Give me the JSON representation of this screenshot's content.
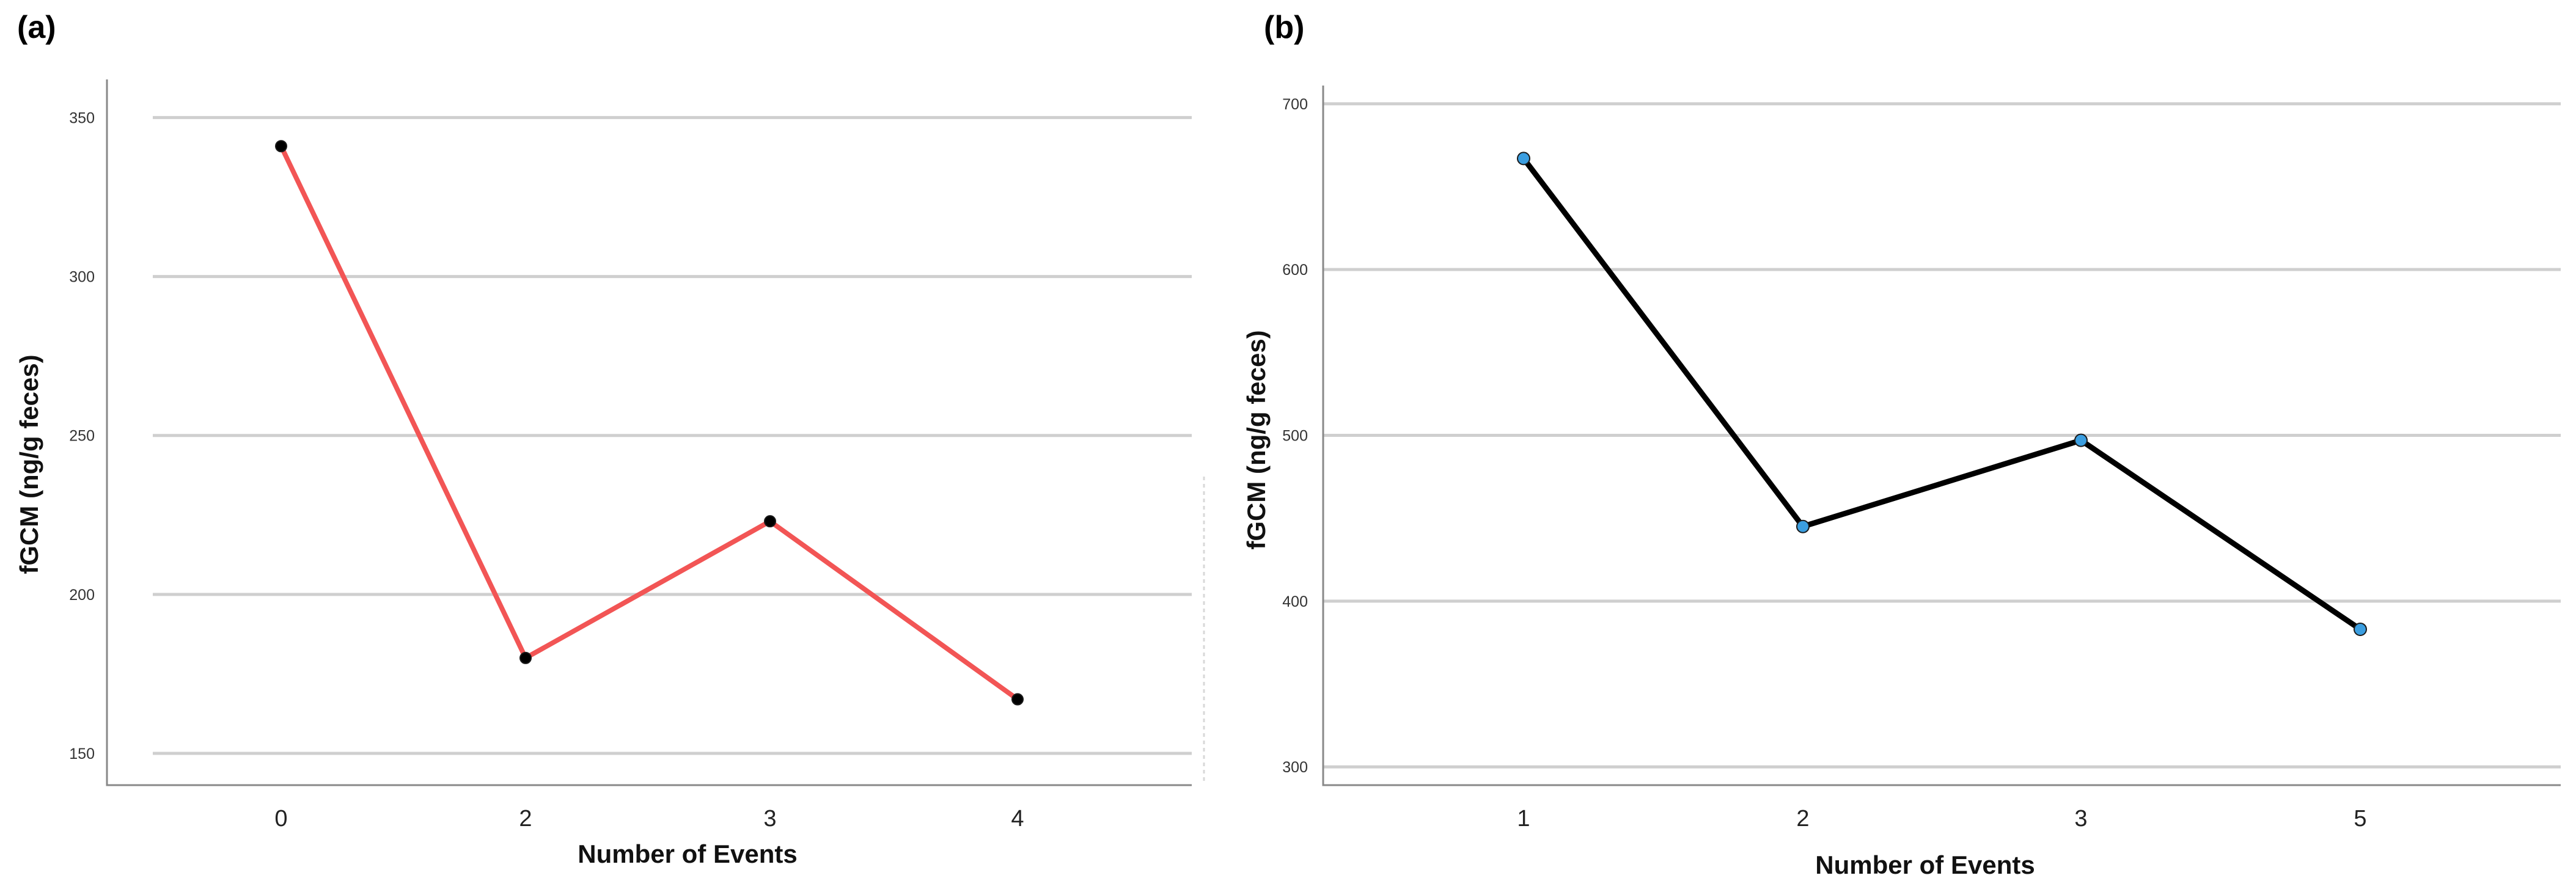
{
  "chart_data": [
    {
      "type": "line",
      "panel_label": "(a)",
      "title": "",
      "xlabel": "Number of Events",
      "ylabel": "fGCM (ng/g feces)",
      "categories": [
        "0",
        "2",
        "3",
        "4"
      ],
      "series": [
        {
          "name": "",
          "color": "#f25555",
          "marker_color": "#000000",
          "values": [
            341,
            180,
            223,
            167
          ]
        }
      ],
      "yticks": [
        150,
        200,
        250,
        300,
        350
      ],
      "ylim": [
        140,
        362
      ],
      "grid": true,
      "legend": "none"
    },
    {
      "type": "line",
      "panel_label": "(b)",
      "title": "",
      "xlabel": "Number of Events",
      "ylabel": "fGCM (ng/g feces)",
      "categories": [
        "1",
        "2",
        "3",
        "5"
      ],
      "series": [
        {
          "name": "",
          "color": "#000000",
          "marker_color": "#3b9ee0",
          "values": [
            667,
            445,
            497,
            383
          ]
        }
      ],
      "yticks": [
        300,
        400,
        500,
        600,
        700
      ],
      "ylim": [
        289,
        711
      ],
      "grid": true,
      "legend": "none"
    }
  ]
}
